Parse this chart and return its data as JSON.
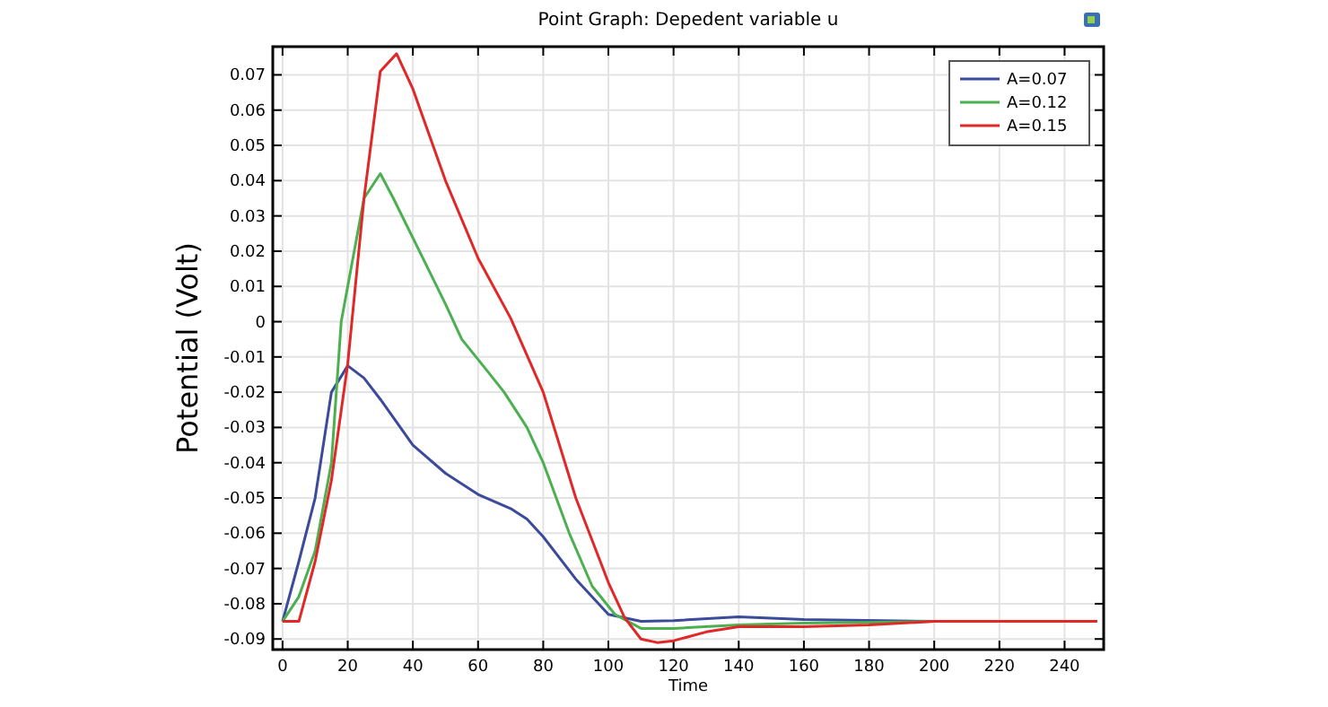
{
  "chart_data": {
    "type": "line",
    "title": "Point Graph: Depedent variable u",
    "xlabel": "Time",
    "ylabel": "Potential (Volt)",
    "xlim": [
      -3,
      252
    ],
    "xticks": [
      0,
      20,
      40,
      60,
      80,
      100,
      120,
      140,
      160,
      180,
      200,
      220,
      240
    ],
    "ylim": [
      -0.093,
      0.078
    ],
    "yticks": [
      -0.09,
      -0.08,
      -0.07,
      -0.06,
      -0.05,
      -0.04,
      -0.03,
      -0.02,
      -0.01,
      0,
      0.01,
      0.02,
      0.03,
      0.04,
      0.05,
      0.06,
      0.07
    ],
    "grid": true,
    "legend": "top right",
    "line_style": "solid",
    "marker": "none",
    "series": [
      {
        "name": "A=0.07",
        "color": "#3b4a9a",
        "x": [
          0,
          5,
          10,
          15,
          20,
          25,
          30,
          40,
          50,
          60,
          70,
          75,
          80,
          90,
          100,
          110,
          120,
          140,
          160,
          200,
          250
        ],
        "values": [
          -0.085,
          -0.068,
          -0.05,
          -0.02,
          -0.0125,
          -0.016,
          -0.022,
          -0.035,
          -0.043,
          -0.049,
          -0.053,
          -0.056,
          -0.061,
          -0.073,
          -0.083,
          -0.085,
          -0.0848,
          -0.0837,
          -0.0845,
          -0.085,
          -0.085
        ]
      },
      {
        "name": "A=0.12",
        "color": "#4caf50",
        "x": [
          0,
          5,
          10,
          15,
          18,
          25,
          30,
          34,
          42,
          50,
          55,
          62,
          68,
          75,
          80,
          88,
          95,
          102,
          110,
          120,
          140,
          160,
          200,
          250
        ],
        "values": [
          -0.085,
          -0.078,
          -0.065,
          -0.04,
          0,
          0.035,
          0.042,
          0.035,
          0.02,
          0.005,
          -0.005,
          -0.013,
          -0.02,
          -0.03,
          -0.04,
          -0.06,
          -0.075,
          -0.083,
          -0.087,
          -0.087,
          -0.086,
          -0.0855,
          -0.085,
          -0.085
        ]
      },
      {
        "name": "A=0.15",
        "color": "#e02828",
        "x": [
          0,
          5,
          10,
          15,
          20,
          25,
          30,
          35,
          40,
          50,
          60,
          70,
          80,
          90,
          100,
          105,
          110,
          115,
          120,
          130,
          140,
          160,
          180,
          200,
          250
        ],
        "values": [
          -0.085,
          -0.085,
          -0.068,
          -0.045,
          -0.012,
          0.035,
          0.071,
          0.076,
          0.066,
          0.04,
          0.018,
          0.001,
          -0.02,
          -0.05,
          -0.074,
          -0.084,
          -0.09,
          -0.091,
          -0.0905,
          -0.088,
          -0.0865,
          -0.0865,
          -0.086,
          -0.085,
          -0.085
        ]
      }
    ]
  }
}
